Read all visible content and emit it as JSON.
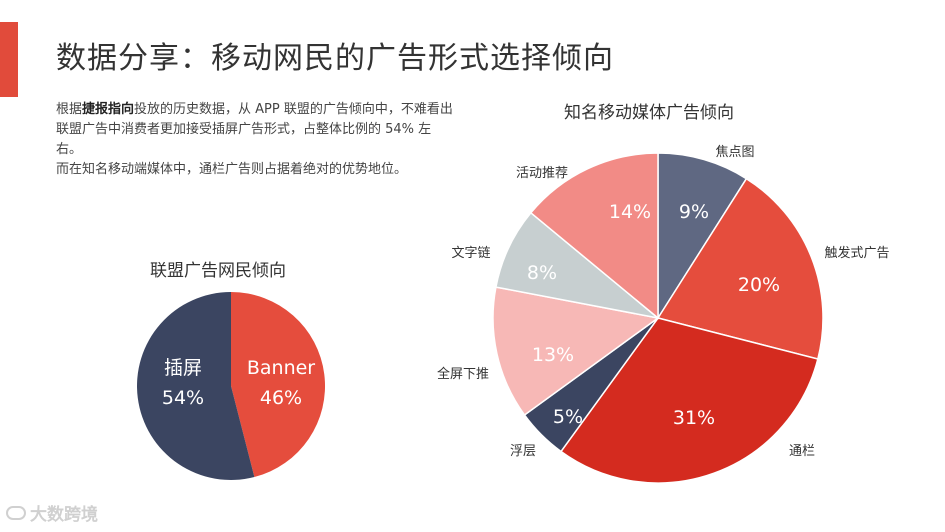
{
  "page": {
    "title": "数据分享：移动网民的广告形式选择倾向",
    "accent_color": "#e14b3b"
  },
  "description": {
    "line1_prefix": "根据",
    "line1_bold": "捷报指向",
    "line1_suffix": "投放的历史数据，从 APP 联盟的广告倾向中，不难看出联盟广告中消费者更加接受插屏广告形式，占整体比例的 54% 左右。",
    "line2": "而在知名移动端媒体中，通栏广告则占据着绝对的优势地位。"
  },
  "logo": {
    "text": "大数跨境"
  },
  "chart_data": [
    {
      "type": "pie",
      "title": "联盟广告网民倾向",
      "slices": [
        {
          "label": "Banner",
          "value": 46,
          "display": "46%",
          "color": "#e54d3d"
        },
        {
          "label": "插屏",
          "value": 54,
          "display": "54%",
          "color": "#3b4561"
        }
      ]
    },
    {
      "type": "pie",
      "title": "知名移动媒体广告倾向",
      "slices": [
        {
          "label": "焦点图",
          "value": 9,
          "display": "9%",
          "color": "#5f6882"
        },
        {
          "label": "触发式广告",
          "value": 20,
          "display": "20%",
          "color": "#e54d3d"
        },
        {
          "label": "通栏",
          "value": 31,
          "display": "31%",
          "color": "#d42b1f"
        },
        {
          "label": "浮层",
          "value": 5,
          "display": "5%",
          "color": "#3b4561"
        },
        {
          "label": "全屏下推",
          "value": 13,
          "display": "13%",
          "color": "#f7b8b6"
        },
        {
          "label": "文字链",
          "value": 8,
          "display": "8%",
          "color": "#c7cfd0"
        },
        {
          "label": "活动推荐",
          "value": 14,
          "display": "14%",
          "color": "#f28b86"
        }
      ]
    }
  ]
}
